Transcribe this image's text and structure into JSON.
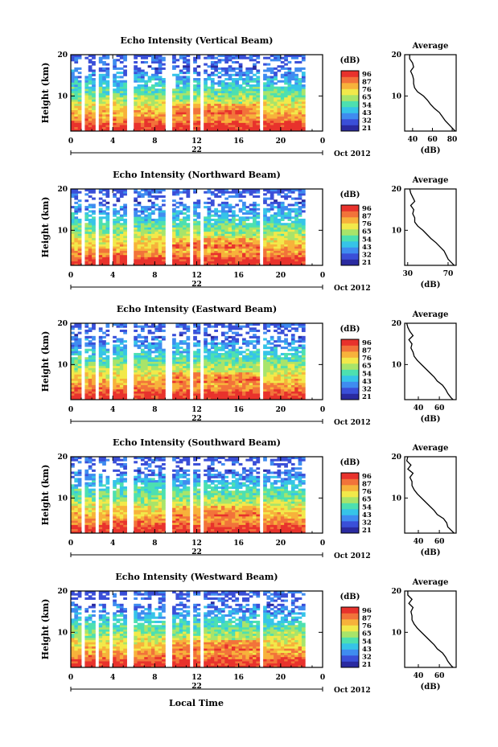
{
  "figure": {
    "date_label": "Oct 2012",
    "day_label": "22",
    "xlabel": "Local Time"
  },
  "chart_data": [
    {
      "type": "heatmap",
      "title": "Echo Intensity (Vertical Beam)",
      "ylabel": "Height (km)",
      "xticks": [
        "0",
        "4",
        "8",
        "12",
        "16",
        "20",
        "0"
      ],
      "yticks": [
        "20",
        "10"
      ],
      "xlim": [
        0,
        24
      ],
      "ylim": [
        1.5,
        20
      ],
      "colorbar_unit": "(dB)",
      "colorbar_ticks": [
        "96",
        "87",
        "76",
        "65",
        "54",
        "43",
        "32",
        "21"
      ],
      "profile": {
        "title": "Average",
        "xlabel": "(dB)",
        "xticks": [
          "40",
          "60",
          "80"
        ],
        "xlim": [
          32,
          84
        ],
        "yticks": [
          "20",
          "10"
        ],
        "heights": [
          1.5,
          2,
          3,
          4,
          5,
          6,
          7,
          8,
          9,
          10,
          11,
          12,
          13,
          14,
          15,
          16,
          17,
          18,
          19,
          20
        ],
        "values": [
          83,
          81,
          77,
          73,
          70,
          67,
          62,
          58,
          55,
          51,
          45,
          42,
          41,
          41,
          40,
          38,
          41,
          40,
          37,
          37
        ]
      }
    },
    {
      "type": "heatmap",
      "title": "Echo Intensity (Northward Beam)",
      "ylabel": "Height (km)",
      "xticks": [
        "0",
        "4",
        "8",
        "12",
        "16",
        "20",
        "0"
      ],
      "yticks": [
        "20",
        "10"
      ],
      "xlim": [
        0,
        24
      ],
      "ylim": [
        1.5,
        20
      ],
      "colorbar_unit": "(dB)",
      "colorbar_ticks": [
        "96",
        "87",
        "76",
        "65",
        "54",
        "43",
        "32",
        "21"
      ],
      "profile": {
        "title": "Average",
        "xlabel": "(dB)",
        "xticks": [
          "30",
          "70"
        ],
        "xlim": [
          27,
          78
        ],
        "yticks": [
          "20",
          "10"
        ],
        "heights": [
          1.5,
          2,
          3,
          4,
          5,
          6,
          7,
          8,
          9,
          10,
          11,
          12,
          13,
          14,
          15,
          16,
          17,
          18,
          19,
          20
        ],
        "values": [
          76,
          74,
          70,
          68,
          66,
          62,
          58,
          53,
          49,
          45,
          40,
          37,
          37,
          35,
          36,
          33,
          37,
          35,
          33,
          32
        ]
      }
    },
    {
      "type": "heatmap",
      "title": "Echo Intensity (Eastward Beam)",
      "ylabel": "Height (km)",
      "xticks": [
        "0",
        "4",
        "8",
        "12",
        "16",
        "20",
        "0"
      ],
      "yticks": [
        "20",
        "10"
      ],
      "xlim": [
        0,
        24
      ],
      "ylim": [
        1.5,
        20
      ],
      "colorbar_unit": "(dB)",
      "colorbar_ticks": [
        "96",
        "87",
        "76",
        "65",
        "54",
        "43",
        "32",
        "21"
      ],
      "profile": {
        "title": "Average",
        "xlabel": "(dB)",
        "xticks": [
          "40",
          "60"
        ],
        "xlim": [
          27,
          76
        ],
        "yticks": [
          "20",
          "10"
        ],
        "heights": [
          1.5,
          2,
          3,
          4,
          5,
          6,
          7,
          8,
          9,
          10,
          11,
          12,
          13,
          14,
          15,
          16,
          17,
          18,
          19,
          20
        ],
        "values": [
          73,
          71,
          68,
          66,
          63,
          58,
          55,
          51,
          47,
          43,
          39,
          36,
          35,
          33,
          34,
          31,
          35,
          32,
          30,
          29
        ]
      }
    },
    {
      "type": "heatmap",
      "title": "Echo Intensity (Southward Beam)",
      "ylabel": "Height (km)",
      "xticks": [
        "0",
        "4",
        "8",
        "12",
        "16",
        "20",
        "0"
      ],
      "yticks": [
        "20",
        "10"
      ],
      "xlim": [
        0,
        24
      ],
      "ylim": [
        1.5,
        20
      ],
      "colorbar_unit": "(dB)",
      "colorbar_ticks": [
        "96",
        "87",
        "76",
        "65",
        "54",
        "43",
        "32",
        "21"
      ],
      "profile": {
        "title": "Average",
        "xlabel": "(dB)",
        "xticks": [
          "40",
          "60"
        ],
        "xlim": [
          27,
          76
        ],
        "yticks": [
          "20",
          "10"
        ],
        "heights": [
          1.5,
          2,
          3,
          4,
          5,
          6,
          7,
          8,
          9,
          10,
          11,
          12,
          13,
          14,
          15,
          16,
          17,
          18,
          19,
          20
        ],
        "values": [
          74,
          72,
          68,
          67,
          64,
          58,
          55,
          51,
          47,
          43,
          39,
          36,
          34,
          34,
          32,
          35,
          30,
          33,
          29,
          30
        ]
      }
    },
    {
      "type": "heatmap",
      "title": "Echo Intensity (Westward Beam)",
      "ylabel": "Height (km)",
      "xticks": [
        "0",
        "4",
        "8",
        "12",
        "16",
        "20",
        "0"
      ],
      "yticks": [
        "20",
        "10"
      ],
      "xlim": [
        0,
        24
      ],
      "ylim": [
        1.5,
        20
      ],
      "colorbar_unit": "(dB)",
      "colorbar_ticks": [
        "96",
        "87",
        "76",
        "65",
        "54",
        "43",
        "32",
        "21"
      ],
      "profile": {
        "title": "Average",
        "xlabel": "(dB)",
        "xticks": [
          "40",
          "60"
        ],
        "xlim": [
          27,
          76
        ],
        "yticks": [
          "20",
          "10"
        ],
        "heights": [
          1.5,
          2,
          3,
          4,
          5,
          6,
          7,
          8,
          9,
          10,
          11,
          12,
          13,
          14,
          15,
          16,
          17,
          18,
          19,
          20
        ],
        "values": [
          73,
          71,
          68,
          66,
          63,
          58,
          55,
          51,
          47,
          43,
          39,
          36,
          34,
          34,
          33,
          35,
          31,
          34,
          30,
          30
        ]
      }
    }
  ],
  "colors": {
    "colormap": [
      "#2a2aa0",
      "#3a4fd8",
      "#3f8cf0",
      "#36c4e8",
      "#4de0b0",
      "#a8e46a",
      "#f2e94a",
      "#f7b23b",
      "#f2733a",
      "#e8322c"
    ],
    "line": "#000000"
  }
}
